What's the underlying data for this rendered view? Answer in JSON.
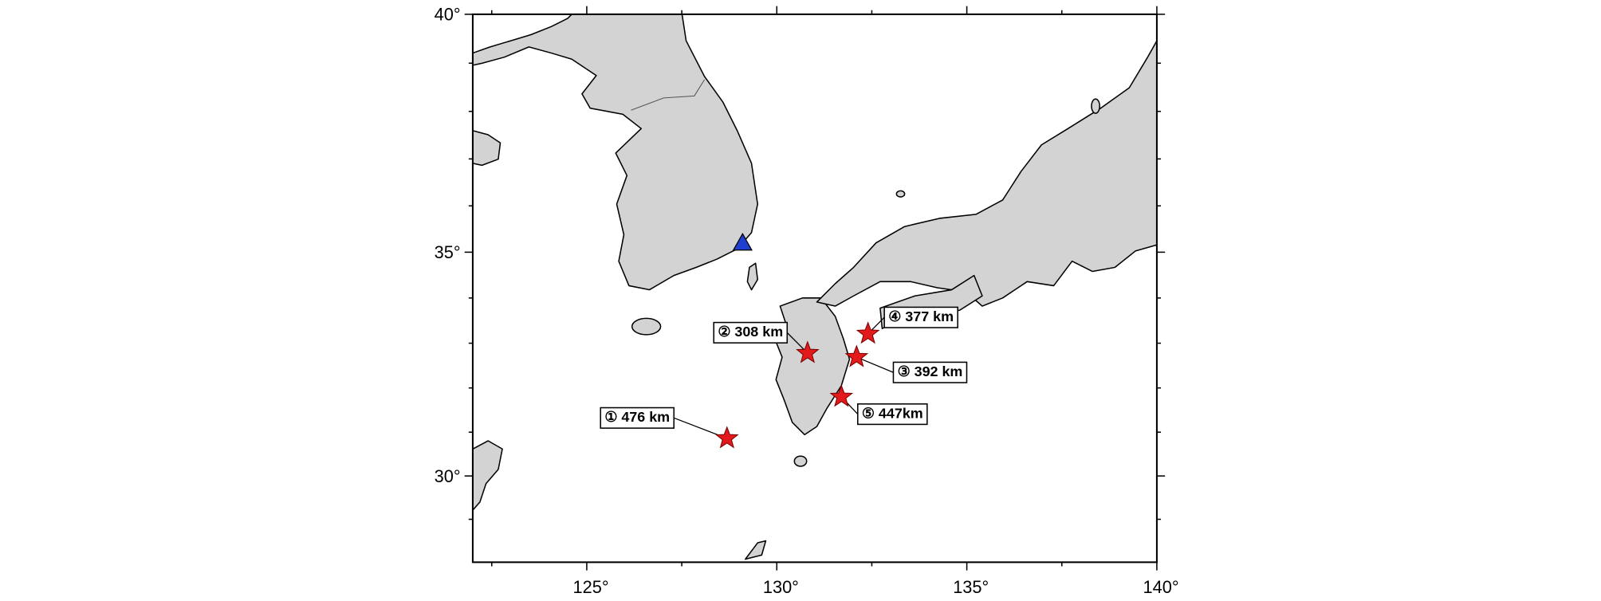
{
  "map": {
    "projection": "mercator",
    "xlim": [
      122,
      140
    ],
    "ylim": [
      28,
      40
    ],
    "xticks": [
      {
        "value": 125,
        "label": "125°"
      },
      {
        "value": 130,
        "label": "130°"
      },
      {
        "value": 135,
        "label": "135°"
      },
      {
        "value": 140,
        "label": "140°"
      }
    ],
    "yticks": [
      {
        "value": 30,
        "label": "30°"
      },
      {
        "value": 35,
        "label": "35°"
      },
      {
        "value": 40,
        "label": "40°"
      }
    ],
    "minor_xticks": [
      122.5,
      127.5,
      132.5,
      137.5
    ],
    "minor_yticks": [
      29,
      31,
      32,
      33,
      34,
      36,
      37,
      38,
      39
    ],
    "station": {
      "lon": 129.1,
      "lat": 35.2,
      "color": "#1f3fd0"
    },
    "event_color": "#e31a1c",
    "events": [
      {
        "label": "① 476 km",
        "lon": 128.69,
        "lat": 30.86
      },
      {
        "label": "② 308 km",
        "lon": 130.81,
        "lat": 32.78
      },
      {
        "label": "③ 392 km",
        "lon": 132.1,
        "lat": 32.69
      },
      {
        "label": "④ 377 km",
        "lon": 132.4,
        "lat": 33.21
      },
      {
        "label": "⑤ 447km",
        "lon": 131.7,
        "lat": 31.8
      }
    ]
  }
}
